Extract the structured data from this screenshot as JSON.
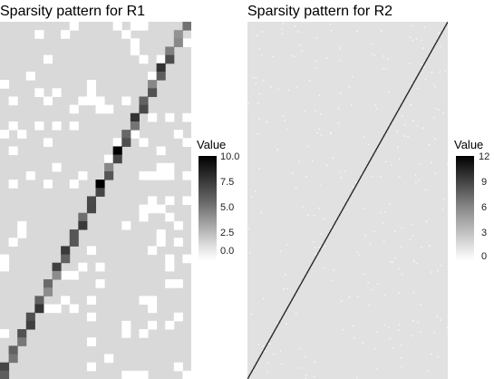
{
  "chart_data": [
    {
      "type": "heatmap",
      "title": "Sparsity pattern for R1",
      "xlabel": "",
      "ylabel": "",
      "rows": 43,
      "cols": 22,
      "diagonal": "anti-diagonal from bottom-left to top-right",
      "zero_color": "#ffffff",
      "low_color": "#d9d9d9",
      "high_color": "#000000",
      "background_color": "#d9d9d9",
      "legend": {
        "title": "Value",
        "ticks": [
          "10.0",
          "7.5",
          "5.0",
          "2.5",
          "0.0"
        ],
        "range": [
          0,
          10
        ],
        "position": "right"
      }
    },
    {
      "type": "heatmap",
      "title": "Sparsity pattern for R2",
      "xlabel": "",
      "ylabel": "",
      "diagonal": "thin anti-diagonal from bottom-left to top-right",
      "background_color": "#e1e1e1",
      "low_color": "#e1e1e1",
      "high_color": "#000000",
      "legend": {
        "title": "Value",
        "ticks": [
          "12",
          "9",
          "6",
          "3",
          "0"
        ],
        "range": [
          0,
          12
        ],
        "position": "right"
      }
    }
  ]
}
